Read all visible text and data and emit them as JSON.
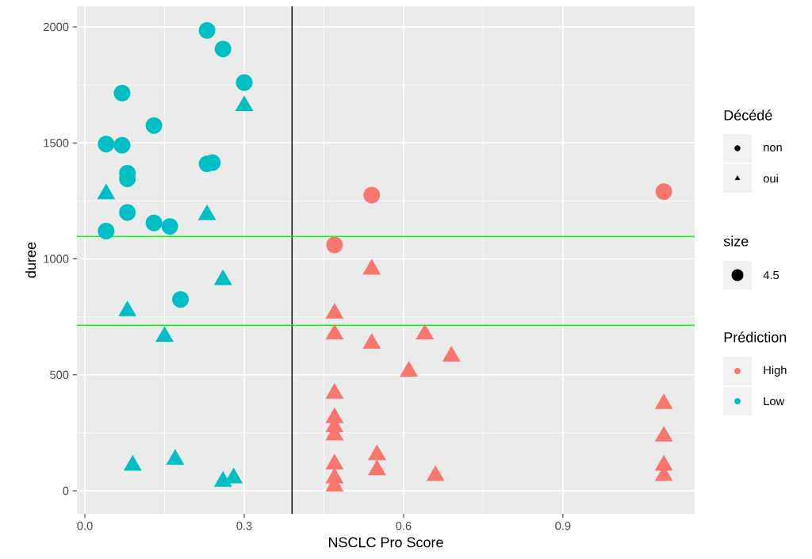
{
  "chart_data": {
    "type": "scatter",
    "xlabel": "NSCLC Pro Score",
    "ylabel": "duree",
    "legend_title": "Décédé",
    "legend": "right",
    "xlim": [
      -0.015,
      1.148
    ],
    "ylim": [
      -99,
      2089
    ],
    "xticks": [
      {
        "value": 0,
        "label": "0.0"
      },
      {
        "value": 0.3,
        "label": "0.3"
      },
      {
        "value": 0.6,
        "label": "0.6"
      },
      {
        "value": 0.9,
        "label": "0.9"
      }
    ],
    "yticks": [
      0,
      500,
      1000,
      1500,
      2000
    ],
    "grid": true,
    "series": [
      {
        "name": "non",
        "marker": "circle",
        "x": [
          0.54,
          0.47,
          1.09,
          0.23,
          0.26,
          0.3,
          0.07,
          0.13,
          0.04,
          0.07,
          0.08,
          0.08,
          0.23,
          0.24,
          0.08,
          0.13,
          0.16,
          0.04,
          0.18
        ],
        "values": [
          1275,
          1060,
          1290,
          1985,
          1905,
          1760,
          1715,
          1575,
          1495,
          1490,
          1370,
          1345,
          1410,
          1415,
          1200,
          1155,
          1140,
          1120,
          825
        ],
        "colors": [
          "#f8766d",
          "#f8766d",
          "#f8766d",
          "#00bfc4",
          "#00bfc4",
          "#00bfc4",
          "#00bfc4",
          "#00bfc4",
          "#00bfc4",
          "#00bfc4",
          "#00bfc4",
          "#00bfc4",
          "#00bfc4",
          "#00bfc4",
          "#00bfc4",
          "#00bfc4",
          "#00bfc4",
          "#00bfc4",
          "#00bfc4"
        ]
      },
      {
        "name": "oui",
        "marker": "triangle",
        "x": [
          0.54,
          0.47,
          0.47,
          0.54,
          0.64,
          0.69,
          0.61,
          0.47,
          0.47,
          0.47,
          0.47,
          0.55,
          0.55,
          0.47,
          0.47,
          0.47,
          0.66,
          1.09,
          1.09,
          1.09,
          1.09,
          0.3,
          0.04,
          0.23,
          0.26,
          0.08,
          0.15,
          0.09,
          0.17,
          0.26,
          0.28
        ],
        "values": [
          955,
          765,
          675,
          635,
          675,
          580,
          515,
          420,
          315,
          275,
          240,
          155,
          90,
          115,
          55,
          20,
          65,
          375,
          235,
          110,
          65,
          1660,
          1280,
          1190,
          910,
          775,
          665,
          110,
          135,
          40,
          55
        ],
        "colors": [
          "#f8766d",
          "#f8766d",
          "#f8766d",
          "#f8766d",
          "#f8766d",
          "#f8766d",
          "#f8766d",
          "#f8766d",
          "#f8766d",
          "#f8766d",
          "#f8766d",
          "#f8766d",
          "#f8766d",
          "#f8766d",
          "#f8766d",
          "#f8766d",
          "#f8766d",
          "#f8766d",
          "#f8766d",
          "#f8766d",
          "#f8766d",
          "#00bfc4",
          "#00bfc4",
          "#00bfc4",
          "#00bfc4",
          "#00bfc4",
          "#00bfc4",
          "#00bfc4",
          "#00bfc4",
          "#00bfc4",
          "#00bfc4"
        ]
      }
    ],
    "ref_lines": [
      {
        "axis": "x",
        "value": 0.39,
        "color": "#000000"
      },
      {
        "axis": "y",
        "value": 1097,
        "color": "#00ff00"
      },
      {
        "axis": "y",
        "value": 714,
        "color": "#00ff00"
      }
    ],
    "annotations": [
      "size",
      "4.5",
      "Prédiction",
      "High",
      "Low"
    ]
  }
}
